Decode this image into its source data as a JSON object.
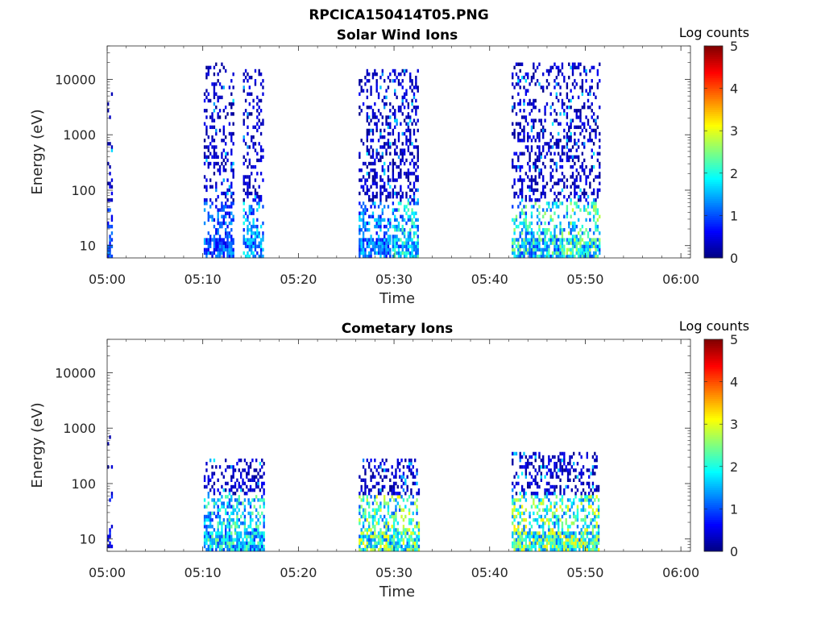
{
  "figure": {
    "title": "RPCICA150414T05.PNG"
  },
  "chart_data": [
    {
      "type": "heatmap",
      "title": "Solar Wind Ions",
      "xlabel": "Time",
      "ylabel": "Energy (eV)",
      "x_ticks": [
        "05:00",
        "05:10",
        "05:20",
        "05:30",
        "05:40",
        "05:50",
        "06:00"
      ],
      "x_range_minutes": [
        0,
        61
      ],
      "y_scale": "log",
      "y_ticks": [
        {
          "value": 10,
          "label": "10"
        },
        {
          "value": 100,
          "label": "100"
        },
        {
          "value": 1000,
          "label": "1000"
        },
        {
          "value": 10000,
          "label": "10000"
        }
      ],
      "ylim": [
        6,
        40000
      ],
      "colorbar": {
        "label": "Log counts",
        "range": [
          0,
          5
        ],
        "ticks": [
          "0",
          "1",
          "2",
          "3",
          "4",
          "5"
        ],
        "colormap": "jet"
      },
      "bursts": [
        {
          "start_min": 0.0,
          "end_min": 0.6,
          "emax": 7000,
          "density": 0.35,
          "low_intensity": 1.2
        },
        {
          "start_min": 10.1,
          "end_min": 13.2,
          "emax": 20000,
          "density": 0.42,
          "low_intensity": 1.4
        },
        {
          "start_min": 14.2,
          "end_min": 16.2,
          "emax": 16000,
          "density": 0.42,
          "low_intensity": 1.8
        },
        {
          "start_min": 26.3,
          "end_min": 29.6,
          "emax": 15000,
          "density": 0.45,
          "low_intensity": 1.6
        },
        {
          "start_min": 29.8,
          "end_min": 32.6,
          "emax": 16000,
          "density": 0.5,
          "low_intensity": 2.2
        },
        {
          "start_min": 42.3,
          "end_min": 47.8,
          "emax": 20000,
          "density": 0.42,
          "low_intensity": 2.4
        },
        {
          "start_min": 48.0,
          "end_min": 51.5,
          "emax": 19000,
          "density": 0.45,
          "low_intensity": 2.6
        }
      ]
    },
    {
      "type": "heatmap",
      "title": "Cometary Ions",
      "xlabel": "Time",
      "ylabel": "Energy (eV)",
      "x_ticks": [
        "05:00",
        "05:10",
        "05:20",
        "05:30",
        "05:40",
        "05:50",
        "06:00"
      ],
      "x_range_minutes": [
        0,
        61
      ],
      "y_scale": "log",
      "y_ticks": [
        {
          "value": 10,
          "label": "10"
        },
        {
          "value": 100,
          "label": "100"
        },
        {
          "value": 1000,
          "label": "1000"
        },
        {
          "value": 10000,
          "label": "10000"
        }
      ],
      "ylim": [
        6,
        40000
      ],
      "colorbar": {
        "label": "Log counts",
        "range": [
          0,
          5
        ],
        "ticks": [
          "0",
          "1",
          "2",
          "3",
          "4",
          "5"
        ],
        "colormap": "jet"
      },
      "bursts": [
        {
          "start_min": 0.0,
          "end_min": 0.5,
          "emax": 1500,
          "density": 0.12,
          "low_intensity": 0.8
        },
        {
          "start_min": 10.1,
          "end_min": 16.3,
          "emax": 300,
          "density": 0.55,
          "low_intensity": 2.3
        },
        {
          "start_min": 26.3,
          "end_min": 32.6,
          "emax": 300,
          "density": 0.55,
          "low_intensity": 2.9
        },
        {
          "start_min": 42.3,
          "end_min": 51.5,
          "emax": 350,
          "density": 0.55,
          "low_intensity": 3.0
        }
      ]
    }
  ]
}
